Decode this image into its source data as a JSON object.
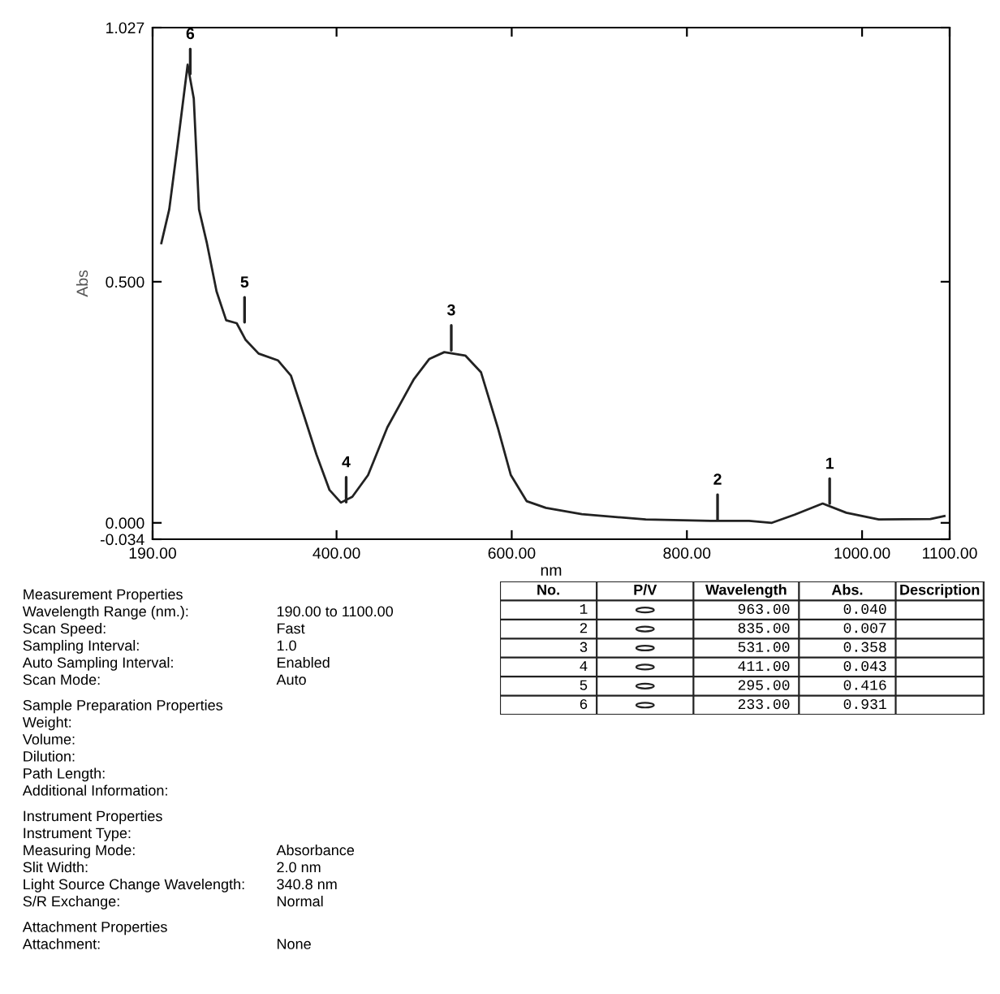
{
  "chart_data": [
    {
      "type": "line",
      "xlabel": "nm",
      "ylabel": "Abs",
      "x": [
        200,
        209,
        219,
        230,
        237,
        243,
        252,
        263,
        274,
        286,
        296,
        311,
        333,
        348,
        362,
        377,
        392,
        405,
        418,
        436,
        458,
        488,
        506,
        523,
        547,
        565,
        584,
        599,
        617,
        639,
        680,
        753,
        827,
        871,
        897,
        923,
        955,
        982,
        1019,
        1078,
        1094
      ],
      "series": [
        {
          "color": "#222222",
          "line_style": "solid",
          "values": [
            0.58,
            0.65,
            0.79,
            0.95,
            0.88,
            0.65,
            0.58,
            0.48,
            0.42,
            0.414,
            0.38,
            0.351,
            0.337,
            0.305,
            0.227,
            0.142,
            0.068,
            0.042,
            0.054,
            0.099,
            0.198,
            0.297,
            0.34,
            0.354,
            0.347,
            0.312,
            0.198,
            0.099,
            0.045,
            0.031,
            0.018,
            0.007,
            0.004,
            0.004,
            0.0,
            0.017,
            0.04,
            0.021,
            0.007,
            0.008,
            0.014
          ]
        }
      ],
      "xlim": [
        190,
        1100
      ],
      "xticks": [
        {
          "value": 190,
          "label": "190.00"
        },
        {
          "value": 400,
          "label": "400.00"
        },
        {
          "value": 600,
          "label": "600.00"
        },
        {
          "value": 800,
          "label": "800.00"
        },
        {
          "value": 1000,
          "label": "1000.00"
        },
        {
          "value": 1100,
          "label": "1100.00"
        }
      ],
      "ylim": [
        -0.034,
        1.027
      ],
      "yticks": [
        {
          "value": -0.034,
          "label": "-0.034"
        },
        {
          "value": 0,
          "label": "0.000"
        },
        {
          "value": 0.5,
          "label": "0.500"
        },
        {
          "value": 1.027,
          "label": "1.027"
        }
      ],
      "annotations": [
        {
          "text": "1",
          "x": 963,
          "y": 0.04
        },
        {
          "text": "2",
          "x": 835,
          "y": 0.007
        },
        {
          "text": "3",
          "x": 531,
          "y": 0.358
        },
        {
          "text": "4",
          "x": 411,
          "y": 0.043
        },
        {
          "text": "5",
          "x": 295,
          "y": 0.416
        },
        {
          "text": "6",
          "x": 233,
          "y": 0.931
        }
      ]
    },
    {
      "type": "other",
      "annotations": [
        "Measurement Properties",
        "Wavelength Range (nm.):\t190.00 to 1100.00",
        "Scan Speed:\tFast",
        "Sampling Interval:\t1.0",
        "Auto Sampling Interval:\tEnabled",
        "Scan Mode:\tAuto",
        "Sample Preparation Properties",
        "Weight:\t",
        "Volume:\t",
        "Dilution:\t",
        "Path Length:\t",
        "Additional Information:\t",
        "Instrument Properties",
        "Instrument Type:\t",
        "Measuring Mode:\tAbsorbance",
        "Slit Width:\t2.0 nm",
        "Light Source Change Wavelength:\t340.8 nm",
        "S/R Exchange:\tNormal",
        "Attachment Properties",
        "Attachment:\tNone"
      ]
    },
    {
      "type": "other",
      "categories": [
        "No.",
        "P/V",
        "Wavelength",
        "Abs.",
        "Description"
      ],
      "annotations": [
        "1\t\t963.00\t0.040\t",
        "2\t\t835.00\t0.007\t",
        "3\t\t531.00\t0.358\t",
        "4\t\t411.00\t0.043\t",
        "5\t\t295.00\t0.416\t",
        "6\t\t233.00\t0.931\t"
      ]
    }
  ]
}
